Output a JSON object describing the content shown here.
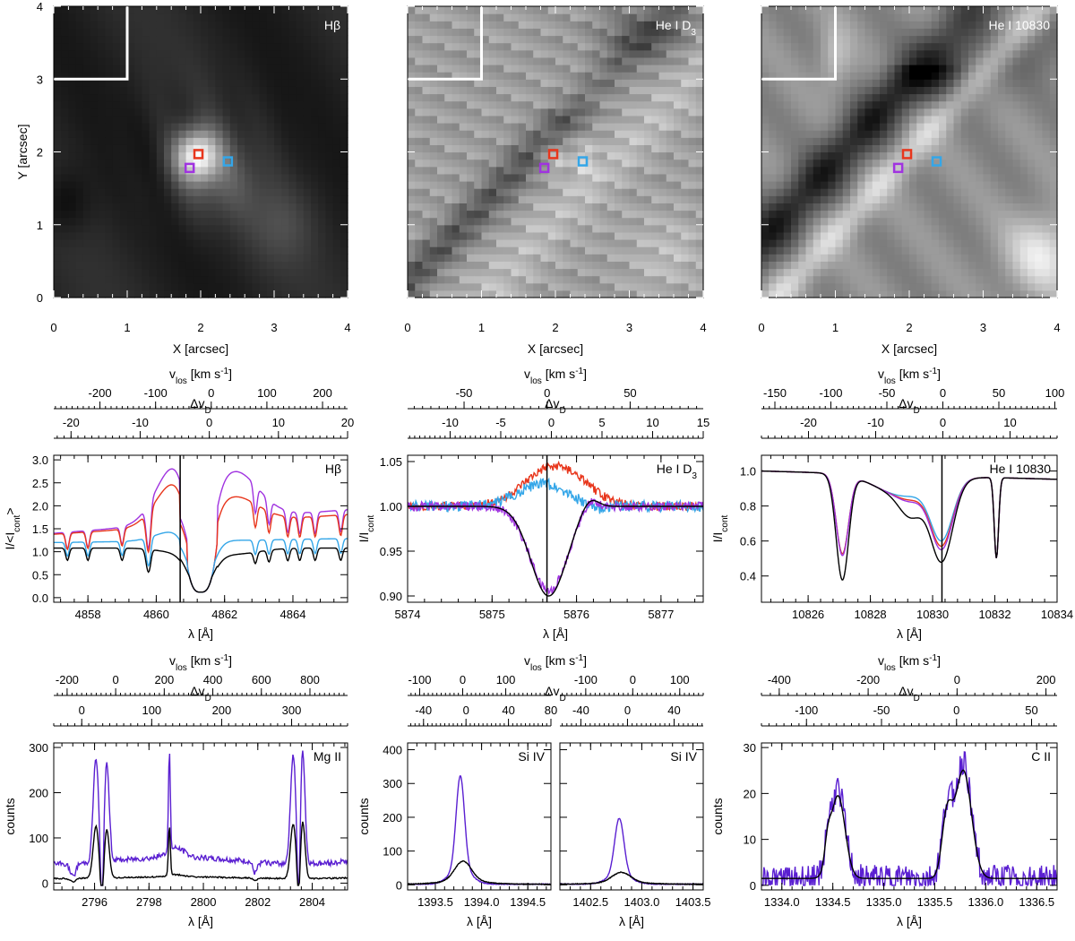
{
  "colors": {
    "red": "#e8361c",
    "blue": "#34a6e8",
    "purple": "#a033e0",
    "black": "#000000",
    "indigo": "#5a1fd1"
  },
  "chart_data": [
    {
      "type": "heatmap",
      "id": "img-hbeta",
      "title": "Hβ",
      "xlabel": "X [arcsec]",
      "ylabel": "Y [arcsec]",
      "xlim": [
        0,
        4
      ],
      "ylim": [
        0,
        4
      ],
      "xticks": [
        "0",
        "1",
        "2",
        "3",
        "4"
      ],
      "yticks": [
        "0",
        "1",
        "2",
        "3",
        "4"
      ],
      "style": "hbeta",
      "markers": [
        {
          "name": "red",
          "x": 1.97,
          "y": 1.97
        },
        {
          "name": "blue",
          "x": 2.37,
          "y": 1.87
        },
        {
          "name": "purple",
          "x": 1.85,
          "y": 1.78
        }
      ],
      "inset_box": {
        "x": [
          0,
          1
        ],
        "y": [
          3,
          4
        ]
      }
    },
    {
      "type": "heatmap",
      "id": "img-d3",
      "title": "He I D",
      "title_sub": "3",
      "xlabel": "X [arcsec]",
      "ylabel": "",
      "xlim": [
        0,
        4
      ],
      "ylim": [
        0,
        4
      ],
      "xticks": [
        "0",
        "1",
        "2",
        "3",
        "4"
      ],
      "yticks": [],
      "style": "d3",
      "markers": [
        {
          "name": "red",
          "x": 1.97,
          "y": 1.97
        },
        {
          "name": "blue",
          "x": 2.37,
          "y": 1.87
        },
        {
          "name": "purple",
          "x": 1.85,
          "y": 1.78
        }
      ],
      "inset_box": {
        "x": [
          0,
          1
        ],
        "y": [
          3,
          4
        ]
      }
    },
    {
      "type": "heatmap",
      "id": "img-10830",
      "title": "He I 10830",
      "xlabel": "X [arcsec]",
      "ylabel": "",
      "xlim": [
        0,
        4
      ],
      "ylim": [
        0,
        4
      ],
      "xticks": [
        "0",
        "1",
        "2",
        "3",
        "4"
      ],
      "yticks": [],
      "style": "h10830",
      "markers": [
        {
          "name": "red",
          "x": 1.97,
          "y": 1.97
        },
        {
          "name": "blue",
          "x": 2.37,
          "y": 1.87
        },
        {
          "name": "purple",
          "x": 1.85,
          "y": 1.78
        }
      ],
      "inset_box": {
        "x": [
          0,
          1
        ],
        "y": [
          3,
          4
        ]
      }
    },
    {
      "type": "line",
      "id": "spec-hbeta",
      "title": "Hβ",
      "xlabel": "λ  [Å]",
      "ylabel": "I/<I",
      "ylabel_sub": "cont",
      "ylabel_end": ">",
      "xlim": [
        4857,
        4865.6
      ],
      "ylim": [
        -0.1,
        3.1
      ],
      "xticks": [
        4858,
        4860,
        4862,
        4864
      ],
      "yticks": [
        0.0,
        0.5,
        1.0,
        1.5,
        2.0,
        2.5,
        3.0
      ],
      "ytick_decimals": 1,
      "vline": 4860.7,
      "top_axis_1": {
        "label": "v",
        "label_sub": "los",
        "label_end": " [km s",
        "label_sup": "-1",
        "label_close": "]",
        "range": [
          -283,
          245
        ],
        "ticks": [
          -200,
          -100,
          0,
          100,
          200
        ]
      },
      "top_axis_2": {
        "label": "Δv",
        "label_sub": "D",
        "range": [
          -22.5,
          20
        ],
        "ticks": [
          -20,
          -10,
          0,
          10,
          20
        ]
      },
      "series": [
        {
          "name": "purple",
          "color": "#a033e0",
          "profile": "hbeta",
          "params": {
            "cont": 1.4,
            "slope": 0.06,
            "peakB": 2.85,
            "peakR": 2.75,
            "core": 0.12,
            "w": 0.85
          }
        },
        {
          "name": "red",
          "color": "#e8361c",
          "profile": "hbeta",
          "params": {
            "cont": 1.38,
            "slope": 0.05,
            "peakB": 2.5,
            "peakR": 2.2,
            "core": 0.12,
            "w": 0.85
          }
        },
        {
          "name": "blue",
          "color": "#34a6e8",
          "profile": "hbeta",
          "params": {
            "cont": 1.2,
            "slope": 0.01,
            "peakB": 1.45,
            "peakR": 1.25,
            "core": 0.12,
            "w": 0.9
          }
        },
        {
          "name": "black",
          "color": "#000000",
          "profile": "hbeta",
          "params": {
            "cont": 1.08,
            "slope": 0.0,
            "peakB": 1.0,
            "peakR": 0.95,
            "core": 0.12,
            "w": 1.0
          }
        }
      ]
    },
    {
      "type": "line",
      "id": "spec-d3",
      "title": "He I D",
      "title_sub": "3",
      "xlabel": "λ  [Å]",
      "ylabel": "I/I",
      "ylabel_sub": "cont",
      "xlim": [
        5874,
        5877.5
      ],
      "ylim": [
        0.893,
        1.057
      ],
      "xticks": [
        5874,
        5875,
        5876,
        5877
      ],
      "yticks": [
        0.9,
        0.95,
        1.0,
        1.05
      ],
      "ytick_decimals": 2,
      "vline": 5875.65,
      "top_axis_1": {
        "label": "v",
        "label_sub": "los",
        "label_end": " [km s",
        "label_sup": "-1",
        "label_close": "]",
        "range": [
          -84,
          94
        ],
        "ticks": [
          -50,
          0,
          50
        ]
      },
      "top_axis_2": {
        "label": "Δv",
        "label_sub": "D",
        "range": [
          -14.2,
          15
        ],
        "ticks": [
          -10,
          -5,
          0,
          5,
          10,
          15
        ]
      },
      "series": [
        {
          "name": "red",
          "color": "#e8361c",
          "profile": "d3",
          "params": {
            "amp": 0.045,
            "c": 5875.75,
            "w": 0.35,
            "noise": 0.005
          }
        },
        {
          "name": "blue",
          "color": "#34a6e8",
          "profile": "d3",
          "params": {
            "amp": 0.025,
            "c": 5875.6,
            "w": 0.3,
            "noise": 0.006,
            "dip": -0.04
          }
        },
        {
          "name": "purple",
          "color": "#a033e0",
          "profile": "d3",
          "params": {
            "amp": -0.095,
            "c": 5875.67,
            "w": 0.22,
            "noise": 0.005
          }
        },
        {
          "name": "black",
          "color": "#000000",
          "profile": "d3",
          "params": {
            "amp": -0.1,
            "c": 5875.67,
            "w": 0.21,
            "noise": 0.0
          }
        }
      ]
    },
    {
      "type": "line",
      "id": "spec-10830",
      "title": "He I 10830",
      "xlabel": "λ  [Å]",
      "ylabel": "I/I",
      "ylabel_sub": "cont",
      "xlim": [
        10824.5,
        10834
      ],
      "ylim": [
        0.25,
        1.09
      ],
      "xticks": [
        10826,
        10828,
        10830,
        10832,
        10834
      ],
      "yticks": [
        0.4,
        0.6,
        0.8,
        1.0
      ],
      "ytick_decimals": 1,
      "vline": 10830.3,
      "top_axis_1": {
        "label": "v",
        "label_sub": "los",
        "label_end": " [km s",
        "label_sup": "-1",
        "label_close": "]",
        "range": [
          -162,
          102
        ],
        "ticks": [
          -150,
          -100,
          -50,
          0,
          50,
          100
        ]
      },
      "top_axis_2": {
        "label": "Δv",
        "label_sub": "D",
        "range": [
          -27,
          17
        ],
        "ticks": [
          -20,
          -10,
          0,
          10
        ]
      },
      "series": [
        {
          "name": "blue",
          "color": "#34a6e8",
          "profile": "h10830",
          "params": {
            "si": 0.45,
            "main": 0.32,
            "wing": 0.0
          }
        },
        {
          "name": "red",
          "color": "#e8361c",
          "profile": "h10830",
          "params": {
            "si": 0.45,
            "main": 0.35,
            "wing": 0.02
          }
        },
        {
          "name": "purple",
          "color": "#a033e0",
          "profile": "h10830",
          "params": {
            "si": 0.46,
            "main": 0.37,
            "wing": 0.03
          }
        },
        {
          "name": "black",
          "color": "#000000",
          "profile": "h10830",
          "params": {
            "si": 0.6,
            "main": 0.44,
            "wing": 0.12
          }
        }
      ]
    },
    {
      "type": "line",
      "id": "spec-mg",
      "title": "Mg II",
      "xlabel": "λ  [Å]",
      "ylabel": "counts",
      "xlim": [
        2794.5,
        2805.3
      ],
      "ylim": [
        -15,
        310
      ],
      "xticks": [
        2796,
        2798,
        2800,
        2802,
        2804
      ],
      "yticks": [
        0,
        100,
        200,
        300
      ],
      "ytick_decimals": 0,
      "top_axis_1": {
        "label": "v",
        "label_sub": "los",
        "label_end": " [km s",
        "label_sup": "-1",
        "label_close": "]",
        "range": [
          -255,
          955
        ],
        "ticks": [
          -200,
          0,
          200,
          400,
          600,
          800
        ]
      },
      "top_axis_2": {
        "label": "Δv",
        "label_sub": "D",
        "range": [
          -40,
          380
        ],
        "ticks": [
          0,
          100,
          200,
          300
        ]
      },
      "series": [
        {
          "name": "indigo",
          "color": "#5a1fd1",
          "profile": "mg",
          "params": {
            "scale": 1.0,
            "base": 50,
            "noise": 6
          }
        },
        {
          "name": "black",
          "color": "#000000",
          "profile": "mg",
          "params": {
            "scale": 0.5,
            "base": 12,
            "noise": 1.5
          }
        }
      ]
    },
    {
      "type": "line",
      "id": "spec-si1",
      "title": "Si IV",
      "xlabel": "λ  [Å]",
      "ylabel": "counts",
      "xlim": [
        1393.2,
        1394.75
      ],
      "ylim": [
        -15,
        420
      ],
      "xticks": [
        "1393.5",
        "1394.0",
        "1394.5"
      ],
      "xtick_values": [
        1393.5,
        1394.0,
        1394.5
      ],
      "yticks": [
        0,
        100,
        200,
        300,
        400
      ],
      "ytick_decimals": 0,
      "top_axis_1": {
        "label": "v",
        "label_sub": "los",
        "label_end": " [km s",
        "label_sup": "-1",
        "label_close": "]",
        "range": [
          -128,
          205
        ],
        "ticks": [
          -100,
          0,
          100
        ]
      },
      "top_axis_2": {
        "label": "Δv",
        "label_sub": "D",
        "range": [
          -55,
          80
        ],
        "ticks": [
          -40,
          0,
          40,
          80
        ]
      },
      "series": [
        {
          "name": "indigo",
          "color": "#5a1fd1",
          "profile": "si",
          "params": {
            "c": 1393.77,
            "amp": 320,
            "w": 0.045
          }
        },
        {
          "name": "black",
          "color": "#000000",
          "profile": "si",
          "params": {
            "c": 1393.8,
            "amp": 68,
            "w": 0.09
          }
        }
      ]
    },
    {
      "type": "line",
      "id": "spec-si2",
      "title": "Si IV",
      "xlabel": "λ  [Å]",
      "ylabel": "",
      "xlim": [
        1402.2,
        1403.6
      ],
      "ylim": [
        -15,
        420
      ],
      "xticks": [
        "1402.5",
        "1403.0",
        "1403.5"
      ],
      "xtick_values": [
        1402.5,
        1403.0,
        1403.5
      ],
      "yticks": [],
      "ytick_decimals": 0,
      "top_axis_1": {
        "label": "",
        "range": [
          -155,
          150
        ],
        "ticks": [
          -100,
          0,
          100
        ]
      },
      "top_axis_2": {
        "label": "",
        "range": [
          -58,
          65
        ],
        "ticks": [
          -40,
          0,
          40
        ]
      },
      "series": [
        {
          "name": "indigo",
          "color": "#5a1fd1",
          "profile": "si",
          "params": {
            "c": 1402.78,
            "amp": 195,
            "w": 0.045
          }
        },
        {
          "name": "black",
          "color": "#000000",
          "profile": "si",
          "params": {
            "c": 1402.8,
            "amp": 35,
            "w": 0.09
          }
        }
      ]
    },
    {
      "type": "line",
      "id": "spec-c2",
      "title": "C II",
      "xlabel": "λ  [Å]",
      "ylabel": "counts",
      "xlim": [
        1333.8,
        1336.7
      ],
      "ylim": [
        -1,
        31
      ],
      "xticks": [
        "1334.0",
        "1334.5",
        "1335.0",
        "1335.5",
        "1336.0",
        "1336.5"
      ],
      "xtick_values": [
        1334.0,
        1334.5,
        1335.0,
        1335.5,
        1336.0,
        1336.5
      ],
      "yticks": [
        0,
        10,
        20,
        30
      ],
      "ytick_decimals": 0,
      "top_axis_1": {
        "label": "v",
        "label_sub": "los",
        "label_end": " [km s",
        "label_sup": "-1",
        "label_close": "]",
        "range": [
          -440,
          225
        ],
        "ticks": [
          -400,
          -200,
          0,
          200
        ]
      },
      "top_axis_2": {
        "label": "Δv",
        "label_sub": "D",
        "range": [
          -130,
          67
        ],
        "ticks": [
          -100,
          -50,
          0,
          50
        ]
      },
      "series": [
        {
          "name": "indigo",
          "color": "#5a1fd1",
          "profile": "c2",
          "params": {
            "noise": 2.0,
            "scale": 1.08
          }
        },
        {
          "name": "black",
          "color": "#000000",
          "profile": "c2",
          "params": {
            "noise": 0.0,
            "scale": 1.0
          }
        }
      ]
    }
  ]
}
